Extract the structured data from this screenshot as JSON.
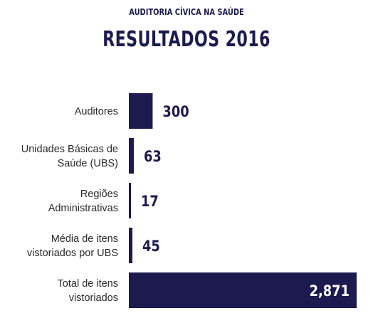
{
  "header": {
    "subtitle": "AUDITORIA CÍVICA NA SAÚDE",
    "title": "RESULTADOS 2016"
  },
  "colors": {
    "bar": "#1c1a4e",
    "text": "#2a2a2a",
    "inside_label": "#ffffff"
  },
  "chart_data": {
    "type": "bar",
    "orientation": "horizontal",
    "title": "RESULTADOS 2016",
    "subtitle": "AUDITORIA CÍVICA NA SAÚDE",
    "categories": [
      [
        "Auditores"
      ],
      [
        "Unidades Básicas de",
        "Saúde (UBS)"
      ],
      [
        "Regiões",
        "Administrativas"
      ],
      [
        "Média de itens",
        "vistoriados por UBS"
      ],
      [
        "Total de itens",
        "vistoriados"
      ]
    ],
    "values": [
      300,
      63,
      17,
      45,
      2871
    ],
    "value_labels": [
      "300",
      "63",
      "17",
      "45",
      "2,871"
    ],
    "xlabel": "",
    "ylabel": "",
    "grid": false,
    "legend": "none"
  }
}
